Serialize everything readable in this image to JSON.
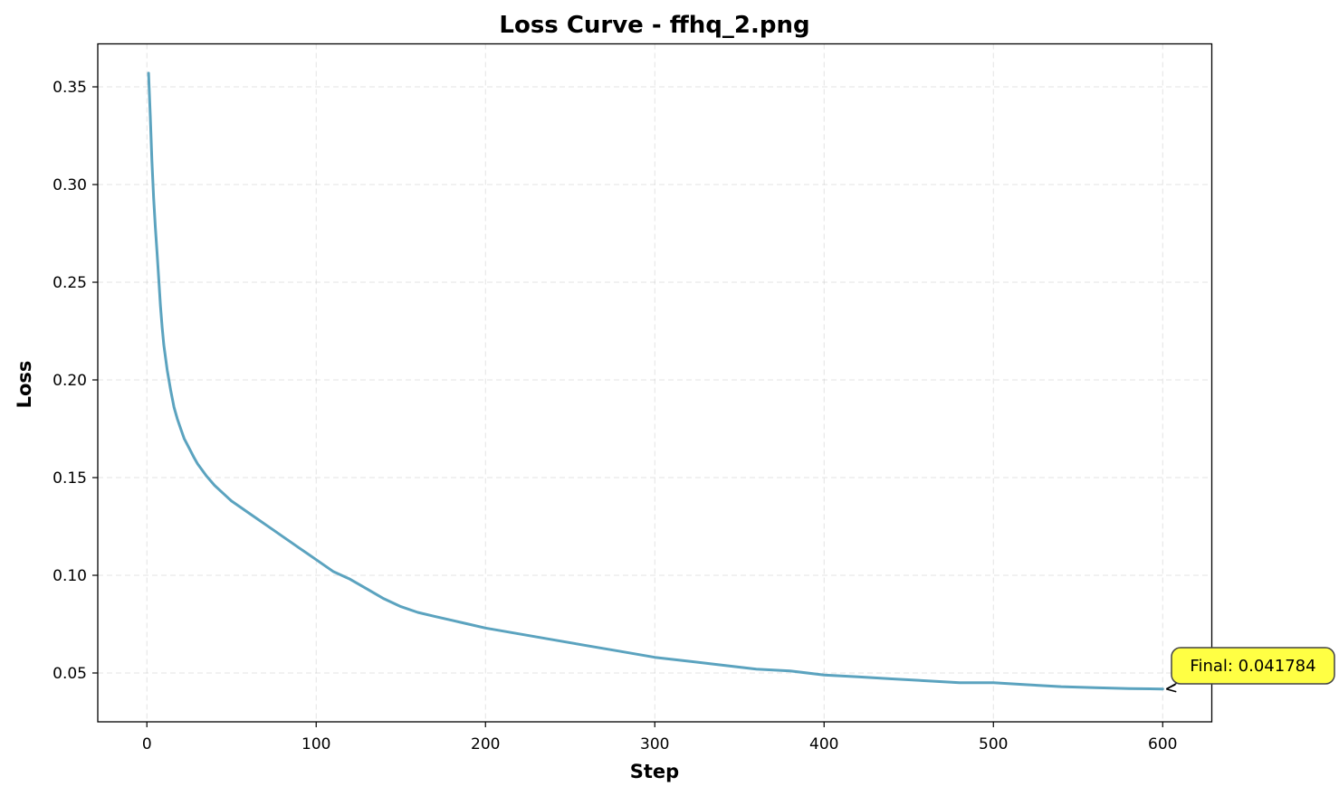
{
  "chart_data": {
    "type": "line",
    "title": "Loss Curve - ffhq_2.png",
    "xlabel": "Step",
    "ylabel": "Loss",
    "xlim": [
      -29,
      629
    ],
    "ylim": [
      0.025,
      0.372
    ],
    "xticks": [
      0,
      100,
      200,
      300,
      400,
      500,
      600
    ],
    "yticks": [
      0.05,
      0.1,
      0.15,
      0.2,
      0.25,
      0.3,
      0.35
    ],
    "ytick_labels": [
      "0.05",
      "0.10",
      "0.15",
      "0.20",
      "0.25",
      "0.30",
      "0.35"
    ],
    "grid": true,
    "line_color": "#5ba3bf",
    "series": [
      {
        "x": [
          1,
          2,
          3,
          4,
          5,
          6,
          7,
          8,
          9,
          10,
          12,
          14,
          16,
          18,
          20,
          22,
          25,
          28,
          30,
          35,
          40,
          45,
          50,
          55,
          60,
          65,
          70,
          75,
          80,
          85,
          90,
          95,
          100,
          110,
          120,
          130,
          140,
          150,
          160,
          170,
          180,
          190,
          200,
          220,
          240,
          260,
          280,
          300,
          320,
          340,
          360,
          380,
          400,
          420,
          440,
          460,
          480,
          500,
          520,
          540,
          560,
          580,
          600
        ],
        "y": [
          0.357,
          0.335,
          0.312,
          0.293,
          0.278,
          0.265,
          0.252,
          0.238,
          0.227,
          0.218,
          0.205,
          0.195,
          0.186,
          0.18,
          0.175,
          0.17,
          0.165,
          0.16,
          0.157,
          0.151,
          0.146,
          0.142,
          0.138,
          0.135,
          0.132,
          0.129,
          0.126,
          0.123,
          0.12,
          0.117,
          0.114,
          0.111,
          0.108,
          0.102,
          0.098,
          0.093,
          0.088,
          0.084,
          0.081,
          0.079,
          0.077,
          0.075,
          0.073,
          0.07,
          0.067,
          0.064,
          0.061,
          0.058,
          0.056,
          0.054,
          0.052,
          0.051,
          0.049,
          0.048,
          0.047,
          0.046,
          0.045,
          0.045,
          0.044,
          0.043,
          0.0425,
          0.042,
          0.041784
        ]
      }
    ],
    "annotation": {
      "text": "Final: 0.041784",
      "x": 600,
      "y": 0.041784,
      "box_color": "#ffff44"
    }
  }
}
